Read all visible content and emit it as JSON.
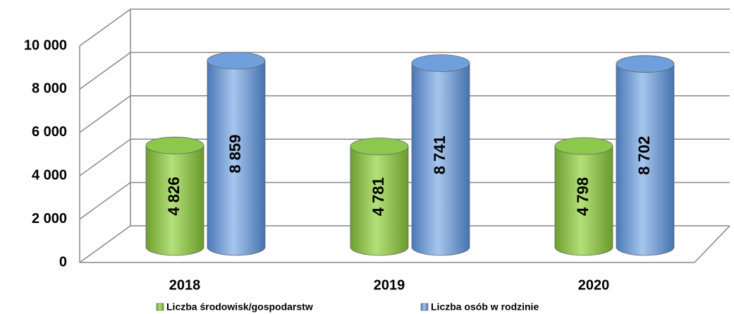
{
  "chart_data": {
    "type": "cylinder",
    "categories": [
      "2018",
      "2019",
      "2020"
    ],
    "series": [
      {
        "name": "Liczba środowisk/gospodarstw",
        "color": "#8cc84b",
        "values": [
          4826,
          4781,
          4798
        ],
        "value_labels": [
          "4 826",
          "4 781",
          "4 798"
        ]
      },
      {
        "name": "Liczba osób w rodzinie",
        "color": "#6f9fdc",
        "values": [
          8859,
          8741,
          8702
        ],
        "value_labels": [
          "8 859",
          "8 741",
          "8 702"
        ]
      }
    ],
    "ylim": [
      0,
      10000
    ],
    "yticks": [
      0,
      {
        "value": 2000,
        "label": "2 000"
      },
      {
        "value": 4000,
        "label": "4 000"
      },
      {
        "value": 6000,
        "label": "6 000"
      },
      {
        "value": 8000,
        "label": "8 000"
      },
      {
        "value": 10000,
        "label": "10 000"
      }
    ],
    "grid": true,
    "legend": "bottom"
  }
}
